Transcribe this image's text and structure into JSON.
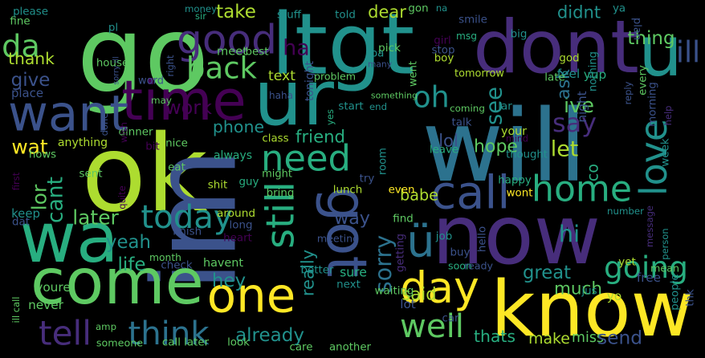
{
  "background": "#000000",
  "palette": {
    "purple": "#440154",
    "indigo": "#472d7b",
    "violet": "#3b528b",
    "blue": "#2c728e",
    "teal": "#21918c",
    "green": "#28ae80",
    "lime": "#5ec962",
    "chartreuse": "#addc30",
    "yellow": "#fde725"
  },
  "words": [
    {
      "text": "go",
      "color": "lime"
    },
    {
      "text": "ltgt",
      "color": "teal"
    },
    {
      "text": "dont",
      "color": "indigo"
    },
    {
      "text": "will",
      "color": "blue"
    },
    {
      "text": "ok",
      "color": "chartreuse"
    },
    {
      "text": "im",
      "color": "violet"
    },
    {
      "text": "now",
      "color": "indigo"
    },
    {
      "text": "got",
      "color": "violet"
    },
    {
      "text": "know",
      "color": "yellow"
    },
    {
      "text": "come",
      "color": "lime"
    },
    {
      "text": "wa",
      "color": "green"
    },
    {
      "text": "time",
      "color": "purple"
    },
    {
      "text": "ur",
      "color": "teal"
    },
    {
      "text": "love",
      "color": "teal"
    },
    {
      "text": "u",
      "color": "teal"
    },
    {
      "text": "want",
      "color": "violet"
    },
    {
      "text": "good",
      "color": "indigo"
    },
    {
      "text": "back",
      "color": "lime"
    },
    {
      "text": "one",
      "color": "yellow"
    },
    {
      "text": "day",
      "color": "yellow"
    },
    {
      "text": "home",
      "color": "green"
    },
    {
      "text": "call",
      "color": "violet"
    },
    {
      "text": "need",
      "color": "green"
    },
    {
      "text": "still",
      "color": "green"
    },
    {
      "text": "ü",
      "color": "blue"
    },
    {
      "text": "going",
      "color": "green"
    },
    {
      "text": "today",
      "color": "teal"
    },
    {
      "text": "think",
      "color": "blue"
    },
    {
      "text": "tell",
      "color": "indigo"
    },
    {
      "text": "well",
      "color": "lime"
    },
    {
      "text": "much",
      "color": "lime"
    },
    {
      "text": "say",
      "color": "indigo"
    },
    {
      "text": "ill",
      "color": "violet"
    },
    {
      "text": "oh",
      "color": "teal"
    },
    {
      "text": "see",
      "color": "teal"
    },
    {
      "text": "sorry",
      "color": "blue"
    },
    {
      "text": "take",
      "color": "chartreuse"
    },
    {
      "text": "thing",
      "color": "lime"
    },
    {
      "text": "da",
      "color": "lime"
    },
    {
      "text": "thank",
      "color": "chartreuse"
    },
    {
      "text": "give",
      "color": "violet"
    },
    {
      "text": "ha",
      "color": "purple"
    },
    {
      "text": "work",
      "color": "purple"
    },
    {
      "text": "phone",
      "color": "teal"
    },
    {
      "text": "friend",
      "color": "green"
    },
    {
      "text": "hope",
      "color": "lime"
    },
    {
      "text": "let",
      "color": "chartreuse"
    },
    {
      "text": "ive",
      "color": "lime"
    },
    {
      "text": "ask",
      "color": "blue"
    },
    {
      "text": "lor",
      "color": "lime"
    },
    {
      "text": "cant",
      "color": "green"
    },
    {
      "text": "wat",
      "color": "yellow"
    },
    {
      "text": "later",
      "color": "lime"
    },
    {
      "text": "way",
      "color": "violet"
    },
    {
      "text": "yeah",
      "color": "teal"
    },
    {
      "text": "hey",
      "color": "teal"
    },
    {
      "text": "life",
      "color": "green"
    },
    {
      "text": "great",
      "color": "teal"
    },
    {
      "text": "hi",
      "color": "teal"
    },
    {
      "text": "really",
      "color": "teal"
    },
    {
      "text": "lol",
      "color": "violet"
    },
    {
      "text": "babe",
      "color": "chartreuse"
    },
    {
      "text": "already",
      "color": "teal"
    },
    {
      "text": "said",
      "color": "chartreuse"
    },
    {
      "text": "thats",
      "color": "green"
    },
    {
      "text": "make",
      "color": "chartreuse"
    },
    {
      "text": "miss",
      "color": "lime"
    },
    {
      "text": "send",
      "color": "violet"
    },
    {
      "text": "dear",
      "color": "chartreuse"
    },
    {
      "text": "didnt",
      "color": "teal"
    },
    {
      "text": "pick",
      "color": "lime"
    },
    {
      "text": "text",
      "color": "chartreuse"
    },
    {
      "text": "tonight",
      "color": "violet"
    },
    {
      "text": "tomorrow",
      "color": "chartreuse"
    },
    {
      "text": "feel",
      "color": "teal"
    },
    {
      "text": "yup",
      "color": "green"
    },
    {
      "text": "night",
      "color": "violet"
    },
    {
      "text": "co",
      "color": "green"
    },
    {
      "text": "please",
      "color": "teal"
    },
    {
      "text": "fine",
      "color": "lime"
    },
    {
      "text": "money",
      "color": "teal"
    },
    {
      "text": "sir",
      "color": "green"
    },
    {
      "text": "stuff",
      "color": "teal"
    },
    {
      "text": "told",
      "color": "teal"
    },
    {
      "text": "gon",
      "color": "lime"
    },
    {
      "text": "na",
      "color": "teal"
    },
    {
      "text": "msg",
      "color": "green"
    },
    {
      "text": "smile",
      "color": "violet"
    },
    {
      "text": "ya",
      "color": "teal"
    },
    {
      "text": "plan",
      "color": "violet"
    },
    {
      "text": "pl",
      "color": "teal"
    },
    {
      "text": "meet",
      "color": "lime"
    },
    {
      "text": "best",
      "color": "lime"
    },
    {
      "text": "girl",
      "color": "purple"
    },
    {
      "text": "stop",
      "color": "violet"
    },
    {
      "text": "big",
      "color": "teal"
    },
    {
      "text": "house",
      "color": "lime"
    },
    {
      "text": "sorry ill",
      "color": "violet"
    },
    {
      "text": "right",
      "color": "violet"
    },
    {
      "text": "boy",
      "color": "chartreuse"
    },
    {
      "text": "pa",
      "color": "teal"
    },
    {
      "text": "many",
      "color": "violet"
    },
    {
      "text": "god",
      "color": "chartreuse"
    },
    {
      "text": "nothing",
      "color": "teal"
    },
    {
      "text": "place",
      "color": "violet"
    },
    {
      "text": "word",
      "color": "violet"
    },
    {
      "text": "problem",
      "color": "lime"
    },
    {
      "text": "went",
      "color": "lime"
    },
    {
      "text": "late",
      "color": "lime"
    },
    {
      "text": "every",
      "color": "lime"
    },
    {
      "text": "reply",
      "color": "violet"
    },
    {
      "text": "may",
      "color": "lime"
    },
    {
      "text": "haha",
      "color": "violet"
    },
    {
      "text": "yes",
      "color": "green"
    },
    {
      "text": "something",
      "color": "lime"
    },
    {
      "text": "lar",
      "color": "teal"
    },
    {
      "text": "morning",
      "color": "violet"
    },
    {
      "text": "done",
      "color": "violet"
    },
    {
      "text": "start",
      "color": "teal"
    },
    {
      "text": "end",
      "color": "teal"
    },
    {
      "text": "coming",
      "color": "lime"
    },
    {
      "text": "help",
      "color": "indigo"
    },
    {
      "text": "dinner",
      "color": "lime"
    },
    {
      "text": "talk",
      "color": "violet"
    },
    {
      "text": "your",
      "color": "chartreuse"
    },
    {
      "text": "mind",
      "color": "purple"
    },
    {
      "text": "wish",
      "color": "purple"
    },
    {
      "text": "anything",
      "color": "chartreuse"
    },
    {
      "text": "nice",
      "color": "lime"
    },
    {
      "text": "bit",
      "color": "purple"
    },
    {
      "text": "class",
      "color": "chartreuse"
    },
    {
      "text": "leave",
      "color": "green"
    },
    {
      "text": "thought",
      "color": "teal"
    },
    {
      "text": "week",
      "color": "teal"
    },
    {
      "text": "hows",
      "color": "lime"
    },
    {
      "text": "eat",
      "color": "lime"
    },
    {
      "text": "always",
      "color": "green"
    },
    {
      "text": "might",
      "color": "lime"
    },
    {
      "text": "room",
      "color": "teal"
    },
    {
      "text": "happy",
      "color": "green"
    },
    {
      "text": "first",
      "color": "purple"
    },
    {
      "text": "sent",
      "color": "lime"
    },
    {
      "text": "shit",
      "color": "chartreuse"
    },
    {
      "text": "guy",
      "color": "green"
    },
    {
      "text": "try",
      "color": "violet"
    },
    {
      "text": "wont",
      "color": "yellow"
    },
    {
      "text": "quite",
      "color": "purple"
    },
    {
      "text": "bring",
      "color": "lime"
    },
    {
      "text": "lunch",
      "color": "chartreuse"
    },
    {
      "text": "even",
      "color": "yellow"
    },
    {
      "text": "keep",
      "color": "teal"
    },
    {
      "text": "dat",
      "color": "violet"
    },
    {
      "text": "around",
      "color": "chartreuse"
    },
    {
      "text": "find",
      "color": "lime"
    },
    {
      "text": "number",
      "color": "teal"
    },
    {
      "text": "message",
      "color": "indigo"
    },
    {
      "text": "finish",
      "color": "violet"
    },
    {
      "text": "long",
      "color": "violet"
    },
    {
      "text": "heart",
      "color": "purple"
    },
    {
      "text": "meeting",
      "color": "violet"
    },
    {
      "text": "getting",
      "color": "indigo"
    },
    {
      "text": "job",
      "color": "teal"
    },
    {
      "text": "hello",
      "color": "violet"
    },
    {
      "text": "buy",
      "color": "violet"
    },
    {
      "text": "yet",
      "color": "chartreuse"
    },
    {
      "text": "mean",
      "color": "lime"
    },
    {
      "text": "person",
      "color": "teal"
    },
    {
      "text": "month",
      "color": "lime"
    },
    {
      "text": "check",
      "color": "violet"
    },
    {
      "text": "havent",
      "color": "lime"
    },
    {
      "text": "sure",
      "color": "green"
    },
    {
      "text": "soon",
      "color": "green"
    },
    {
      "text": "ready",
      "color": "violet"
    },
    {
      "text": "people",
      "color": "teal"
    },
    {
      "text": "thk",
      "color": "violet"
    },
    {
      "text": "free",
      "color": "violet"
    },
    {
      "text": "youre",
      "color": "lime"
    },
    {
      "text": "never",
      "color": "lime"
    },
    {
      "text": "better",
      "color": "teal"
    },
    {
      "text": "next",
      "color": "teal"
    },
    {
      "text": "ill call",
      "color": "lime"
    },
    {
      "text": "amp",
      "color": "lime"
    },
    {
      "text": "waiting",
      "color": "lime"
    },
    {
      "text": "lot",
      "color": "violet"
    },
    {
      "text": "jus",
      "color": "teal"
    },
    {
      "text": "yo",
      "color": "chartreuse"
    },
    {
      "text": "car",
      "color": "violet"
    },
    {
      "text": "someone",
      "color": "lime"
    },
    {
      "text": "call later",
      "color": "lime"
    },
    {
      "text": "look",
      "color": "lime"
    },
    {
      "text": "care",
      "color": "lime"
    },
    {
      "text": "another",
      "color": "lime"
    }
  ]
}
